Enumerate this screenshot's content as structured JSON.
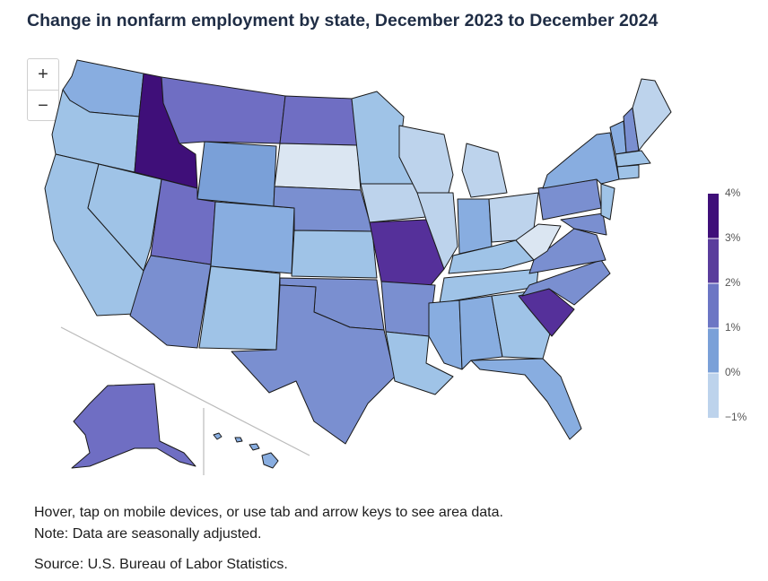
{
  "title": "Change in nonfarm employment by state, December 2023 to December 2024",
  "zoom": {
    "in_label": "+",
    "out_label": "−"
  },
  "legend": {
    "ticks": [
      "4%",
      "3%",
      "2%",
      "1%",
      "0%",
      "−1%"
    ],
    "colors": [
      "#dbe6f2",
      "#9fc3e7",
      "#7aa0d8",
      "#6c76c4",
      "#5a3d9c",
      "#3f0f79"
    ]
  },
  "notes": {
    "line1": "Hover, tap on mobile devices, or use tab and arrow keys to see area data.",
    "line2": "Note: Data are seasonally adjusted.",
    "source": "Source: U.S. Bureau of Labor Statistics."
  },
  "colors": {
    "title": "#1f2d45",
    "c_neg": "#dbe6f2",
    "c_low": "#bdd3ec",
    "c_mid": "#9fc3e7",
    "c_midhigh": "#88ade0",
    "c_high": "#7a8fd0",
    "c_higher": "#6f6ec3",
    "c_top": "#55309a",
    "c_max": "#3f0f79"
  }
}
